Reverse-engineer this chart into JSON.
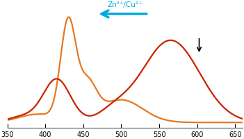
{
  "xmin": 350,
  "xmax": 660,
  "xticks": [
    350,
    400,
    450,
    500,
    550,
    600,
    650
  ],
  "background_color": "#ffffff",
  "orange_line_color": "#E87820",
  "red_line_color": "#CC2200",
  "arrow_label": "Zn²⁺/Cu²⁺",
  "arrow_color": "#00AADD"
}
